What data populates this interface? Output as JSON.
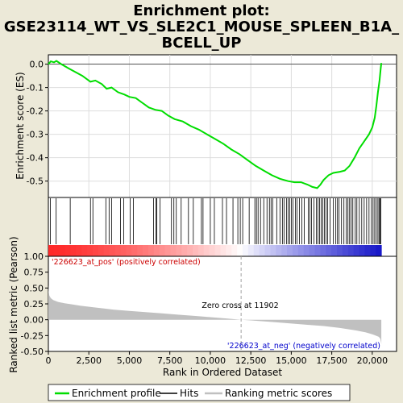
{
  "title": "Enrichment plot:\nGSE23114_WT_VS_SLE2C1_MOUSE_SPLEEN_B1A_\nBCELL_UP",
  "colors": {
    "background": "#ece9d8",
    "enrichment_line": "#00dd00",
    "hit": "#000000",
    "ranking_fill": "#c0c0c0",
    "pos_label": "#cc0000",
    "neg_label": "#0000cc",
    "zero_cross_line": "#a0a0a0"
  },
  "chart_data": [
    {
      "type": "line",
      "name": "enrichment",
      "ylabel": "Enrichment score (ES)",
      "xlim": [
        0,
        21500
      ],
      "ylim": [
        -0.57,
        0.04
      ],
      "yticks": [
        0.0,
        -0.1,
        -0.2,
        -0.3,
        -0.4,
        -0.5
      ],
      "ytick_labels": [
        "0.0",
        "-0.1",
        "-0.2",
        "-0.3",
        "-0.4",
        "-0.5"
      ],
      "grid": true,
      "x": [
        0,
        150,
        350,
        500,
        800,
        1300,
        1700,
        2100,
        2600,
        2900,
        3300,
        3600,
        3900,
        4300,
        4700,
        5000,
        5400,
        5800,
        6200,
        6600,
        7000,
        7400,
        7800,
        8300,
        8800,
        9300,
        9800,
        10300,
        10800,
        11300,
        11800,
        12300,
        12800,
        13300,
        13800,
        14300,
        14800,
        15200,
        15600,
        16000,
        16300,
        16600,
        16800,
        17000,
        17300,
        17600,
        18000,
        18300,
        18600,
        18900,
        19200,
        19500,
        19800,
        20000,
        20150,
        20250,
        20350,
        20450,
        20520,
        20560
      ],
      "y": [
        0.0,
        0.012,
        0.008,
        0.014,
        0.0,
        -0.02,
        -0.035,
        -0.05,
        -0.075,
        -0.07,
        -0.085,
        -0.105,
        -0.1,
        -0.12,
        -0.13,
        -0.14,
        -0.145,
        -0.165,
        -0.185,
        -0.195,
        -0.2,
        -0.22,
        -0.235,
        -0.245,
        -0.265,
        -0.28,
        -0.3,
        -0.32,
        -0.34,
        -0.365,
        -0.385,
        -0.41,
        -0.435,
        -0.455,
        -0.475,
        -0.49,
        -0.5,
        -0.505,
        -0.505,
        -0.515,
        -0.525,
        -0.53,
        -0.515,
        -0.495,
        -0.475,
        -0.465,
        -0.46,
        -0.455,
        -0.435,
        -0.4,
        -0.36,
        -0.33,
        -0.3,
        -0.27,
        -0.23,
        -0.18,
        -0.12,
        -0.07,
        -0.02,
        0.005
      ]
    },
    {
      "type": "scatter",
      "name": "hits",
      "hit_positions": [
        120,
        480,
        1350,
        2600,
        2750,
        3550,
        3750,
        3900,
        4450,
        4650,
        5050,
        5250,
        6500,
        6650,
        6700,
        6900,
        7600,
        7750,
        7900,
        8200,
        8650,
        8950,
        9450,
        9550,
        10000,
        10250,
        10750,
        11000,
        11400,
        11700,
        11850,
        12000,
        12400,
        12750,
        12850,
        12950,
        13100,
        13300,
        13500,
        13650,
        13750,
        13850,
        14100,
        14300,
        14450,
        14550,
        14700,
        14800,
        14900,
        15000,
        15100,
        15250,
        15350,
        15500,
        15650,
        15800,
        16050,
        16150,
        16250,
        16400,
        16550,
        16650,
        16750,
        16850,
        16950,
        17050,
        17150,
        17250,
        17400,
        17600,
        17750,
        17850,
        17950,
        18100,
        18250,
        18400,
        18500,
        18600,
        18700,
        18800,
        18950,
        19050,
        19200,
        19350,
        19500,
        19650,
        19800,
        19950,
        20050,
        20150,
        20250,
        20350,
        20420,
        20480,
        20530
      ]
    },
    {
      "type": "area",
      "name": "ranking",
      "xlabel": "Rank in Ordered Dataset",
      "ylabel": "Ranked list metric (Pearson)",
      "xlim": [
        0,
        21500
      ],
      "ylim": [
        -0.5,
        1.0
      ],
      "yticks": [
        1.0,
        0.75,
        0.5,
        0.25,
        0.0,
        -0.25,
        -0.5
      ],
      "ytick_labels": [
        "1.00",
        "0.75",
        "0.50",
        "0.25",
        "0.00",
        "-0.25",
        "-0.50"
      ],
      "xticks": [
        0,
        2500,
        5000,
        7500,
        10000,
        12500,
        15000,
        17500,
        20000
      ],
      "xtick_labels": [
        "0",
        "2,500",
        "5,000",
        "7,500",
        "10,000",
        "12,500",
        "15,000",
        "17,500",
        "20,000"
      ],
      "x": [
        0,
        20,
        60,
        150,
        300,
        600,
        1000,
        1500,
        2000,
        3000,
        4000,
        5000,
        6000,
        7000,
        8000,
        9000,
        10000,
        11000,
        11902,
        12500,
        13000,
        14000,
        15000,
        16000,
        17000,
        18000,
        19000,
        19600,
        20000,
        20200,
        20400,
        20500,
        20560
      ],
      "values": [
        0.55,
        0.45,
        0.38,
        0.34,
        0.31,
        0.28,
        0.26,
        0.24,
        0.22,
        0.19,
        0.16,
        0.14,
        0.12,
        0.1,
        0.08,
        0.06,
        0.04,
        0.02,
        0.0,
        -0.01,
        -0.02,
        -0.04,
        -0.06,
        -0.08,
        -0.1,
        -0.13,
        -0.17,
        -0.2,
        -0.23,
        -0.25,
        -0.27,
        -0.3,
        -0.38
      ],
      "zero_cross": 11902,
      "annotations": {
        "pos": "'226623_at_pos' (positively correlated)",
        "neg": "'226623_at_neg' (negatively correlated)",
        "zero": "Zero cross at 11902"
      }
    }
  ],
  "legend": {
    "items": [
      {
        "label": "Enrichment profile",
        "color": "#00dd00"
      },
      {
        "label": "Hits",
        "color": "#000000"
      },
      {
        "label": "Ranking metric scores",
        "color": "#c0c0c0"
      }
    ]
  }
}
